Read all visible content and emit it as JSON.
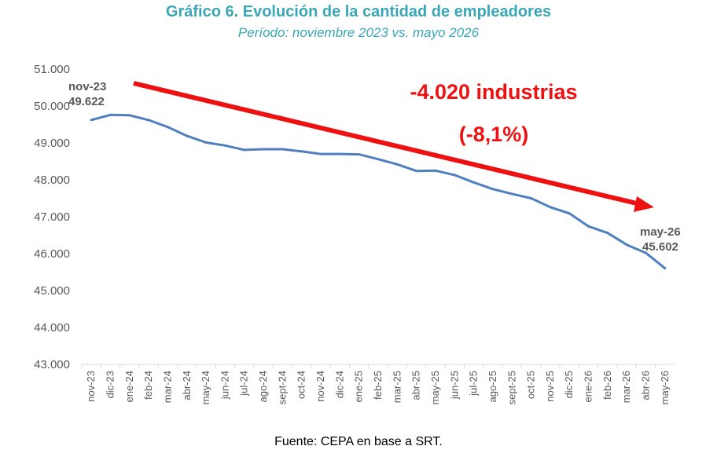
{
  "chart_data": {
    "type": "line",
    "title": "Gráfico 6. Evolución de la cantidad de empleadores",
    "subtitle": "Período: noviembre 2023 vs. mayo 2026",
    "source": "Fuente: CEPA en base a SRT.",
    "categories": [
      "nov-23",
      "dic-23",
      "ene-24",
      "feb-24",
      "mar-24",
      "abr-24",
      "may-24",
      "jun-24",
      "jul-24",
      "ago-24",
      "sept-24",
      "oct-24",
      "nov-24",
      "dic-24",
      "ene-25",
      "feb-25",
      "mar-25",
      "abr-25",
      "may-25",
      "jun-25",
      "jul-25",
      "ago-25",
      "sept-25",
      "oct-25",
      "nov-25",
      "dic-25",
      "ene-26",
      "feb-26",
      "mar-26",
      "abr-26",
      "may-26"
    ],
    "series": [
      {
        "color": "#4f7fbf",
        "values": [
          49622,
          49760,
          49750,
          49620,
          49430,
          49190,
          49010,
          48930,
          48810,
          48830,
          48830,
          48770,
          48700,
          48700,
          48690,
          48560,
          48420,
          48240,
          48250,
          48130,
          47930,
          47750,
          47620,
          47500,
          47260,
          47090,
          46740,
          46560,
          46240,
          46020,
          45602
        ]
      }
    ],
    "ylim": [
      43000,
      51000
    ],
    "yticks": [
      "43.000",
      "44.000",
      "45.000",
      "46.000",
      "47.000",
      "48.000",
      "49.000",
      "50.000",
      "51.000"
    ],
    "grid": false,
    "legend": false,
    "point_labels": {
      "first": {
        "label": "nov-23",
        "value": "49.622"
      },
      "last": {
        "label": "may-26",
        "value": "45.602"
      }
    },
    "annotation": {
      "text": "-4.020 industrias",
      "pct": "(-8,1%)",
      "arrow_color": "#ee1111"
    }
  }
}
